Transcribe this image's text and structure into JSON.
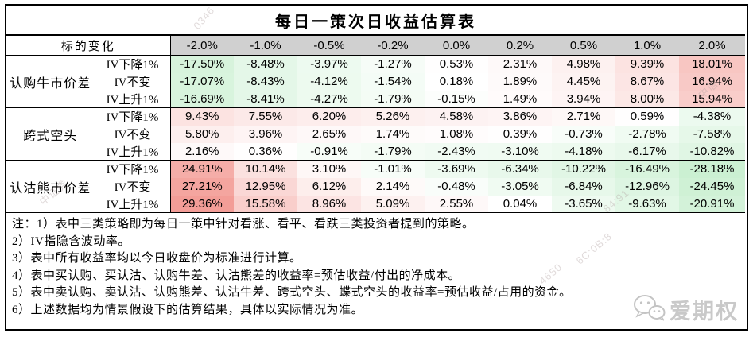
{
  "title": "每日一策次日收益估算表",
  "corner_label": "标的变化",
  "chart_data": {
    "type": "heatmap",
    "title": "每日一策次日收益估算表",
    "unit": "percent_return",
    "columns": [
      "-2.0%",
      "-1.0%",
      "-0.5%",
      "-0.2%",
      "0.0%",
      "0.2%",
      "0.5%",
      "1.0%",
      "2.0%"
    ],
    "column_axis_label": "标的变化",
    "row_groups": [
      {
        "strategy": "认购牛市价差",
        "rows": [
          {
            "iv": "IV下降1%",
            "values": [
              -17.5,
              -8.48,
              -3.97,
              -1.27,
              0.53,
              2.31,
              4.98,
              9.39,
              18.01
            ]
          },
          {
            "iv": "IV不变",
            "values": [
              -17.07,
              -8.43,
              -4.12,
              -1.54,
              0.18,
              1.89,
              4.45,
              8.67,
              16.94
            ]
          },
          {
            "iv": "IV上升1%",
            "values": [
              -16.69,
              -8.41,
              -4.27,
              -1.79,
              -0.15,
              1.49,
              3.94,
              8.0,
              15.94
            ]
          }
        ]
      },
      {
        "strategy": "跨式空头",
        "rows": [
          {
            "iv": "IV下降1%",
            "values": [
              9.43,
              7.55,
              6.2,
              5.26,
              4.58,
              3.86,
              2.71,
              0.59,
              -4.38
            ]
          },
          {
            "iv": "IV不变",
            "values": [
              5.8,
              3.96,
              2.65,
              1.74,
              1.08,
              0.39,
              -0.73,
              -2.78,
              -7.58
            ]
          },
          {
            "iv": "IV上升1%",
            "values": [
              2.16,
              0.36,
              -0.91,
              -1.79,
              -2.43,
              -3.1,
              -4.18,
              -6.17,
              -10.82
            ]
          }
        ]
      },
      {
        "strategy": "认沽熊市价差",
        "rows": [
          {
            "iv": "IV下降1%",
            "values": [
              24.91,
              10.14,
              3.1,
              -1.01,
              -3.69,
              -6.34,
              -10.22,
              -16.49,
              -28.18
            ]
          },
          {
            "iv": "IV不变",
            "values": [
              27.21,
              12.95,
              6.12,
              2.14,
              -0.48,
              -3.05,
              -6.84,
              -12.96,
              -24.45
            ]
          },
          {
            "iv": "IV上升1%",
            "values": [
              29.36,
              15.58,
              8.96,
              5.09,
              2.55,
              0.04,
              -3.65,
              -9.63,
              -20.91
            ]
          }
        ]
      }
    ],
    "color_scale": {
      "positive_max": "#f39d97",
      "negative_max": "#cbf0d2",
      "mid": "#ffffff",
      "header_bg": "#d0d0d0",
      "domain_max": 29.36,
      "domain_min": -28.18
    }
  },
  "notes": [
    "注：1）表中三类策略即为每日一策中针对看涨、看平、看跌三类投资者提到的策略。",
    "2）IV指隐含波动率。",
    "3）表中所有收益率均以今日收盘价为标准进行计算。",
    "4）表中买认购、买认沽、认购牛差、认沽熊差的收益率=预估收益/付出的净成本。",
    "5）表中卖认购、卖认沽、认购熊差、认沽牛差、跨式空头、蝶式空头的收益率=预估收益/占用的资金。",
    "6）上述数据均为情景假设下的估算结果，具体以实际情况为准。"
  ],
  "logo": {
    "text": "爱期权"
  },
  "watermarks": [
    "0346",
    "中证券",
    "84:91",
    "6C:0B:8",
    "4650",
    "中信"
  ]
}
